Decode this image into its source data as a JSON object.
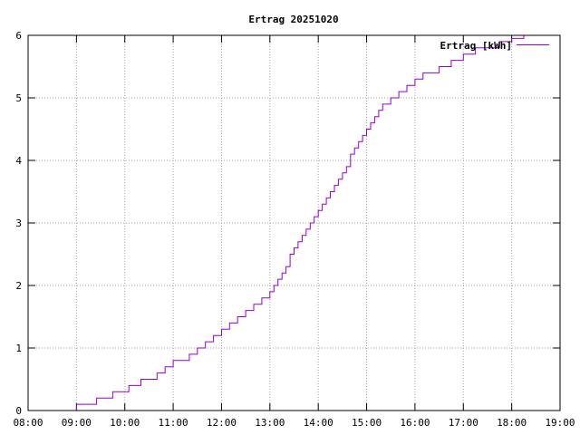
{
  "chart_data": {
    "type": "line",
    "title": "Ertrag 20251020",
    "xlabel": "",
    "ylabel": "",
    "x_ticks": [
      "08:00",
      "09:00",
      "10:00",
      "11:00",
      "12:00",
      "13:00",
      "14:00",
      "15:00",
      "16:00",
      "17:00",
      "18:00",
      "19:00"
    ],
    "y_ticks": [
      "0",
      "1",
      "2",
      "3",
      "4",
      "5",
      "6"
    ],
    "xlim": [
      "08:00",
      "19:00"
    ],
    "ylim": [
      0,
      6
    ],
    "grid": true,
    "legend_position": "top-right",
    "series": [
      {
        "name": "Ertrag [kWh]",
        "color": "#9400d3",
        "step": true,
        "x": [
          "08:55",
          "09:00",
          "09:25",
          "09:45",
          "10:05",
          "10:20",
          "10:30",
          "10:40",
          "10:50",
          "11:00",
          "11:10",
          "11:20",
          "11:30",
          "11:40",
          "11:50",
          "12:00",
          "12:10",
          "12:20",
          "12:30",
          "12:40",
          "12:50",
          "13:00",
          "13:05",
          "13:10",
          "13:15",
          "13:20",
          "13:25",
          "13:30",
          "13:35",
          "13:40",
          "13:45",
          "13:50",
          "13:55",
          "14:00",
          "14:05",
          "14:10",
          "14:15",
          "14:20",
          "14:25",
          "14:30",
          "14:35",
          "14:40",
          "14:45",
          "14:50",
          "14:55",
          "15:00",
          "15:05",
          "15:10",
          "15:15",
          "15:20",
          "15:30",
          "15:40",
          "15:50",
          "16:00",
          "16:10",
          "16:30",
          "16:45",
          "17:00",
          "17:15",
          "17:35",
          "17:45",
          "18:00",
          "18:15"
        ],
        "values": [
          0,
          0.1,
          0.2,
          0.3,
          0.4,
          0.5,
          0.5,
          0.6,
          0.7,
          0.8,
          0.8,
          0.9,
          1.0,
          1.1,
          1.2,
          1.3,
          1.4,
          1.5,
          1.6,
          1.7,
          1.8,
          1.9,
          2.0,
          2.1,
          2.2,
          2.3,
          2.5,
          2.6,
          2.7,
          2.8,
          2.9,
          3.0,
          3.1,
          3.2,
          3.3,
          3.4,
          3.5,
          3.6,
          3.7,
          3.8,
          3.9,
          4.1,
          4.2,
          4.3,
          4.4,
          4.5,
          4.6,
          4.7,
          4.8,
          4.9,
          5.0,
          5.1,
          5.2,
          5.3,
          5.4,
          5.5,
          5.6,
          5.7,
          5.8,
          5.8,
          5.9,
          5.95,
          6.0
        ]
      }
    ]
  }
}
